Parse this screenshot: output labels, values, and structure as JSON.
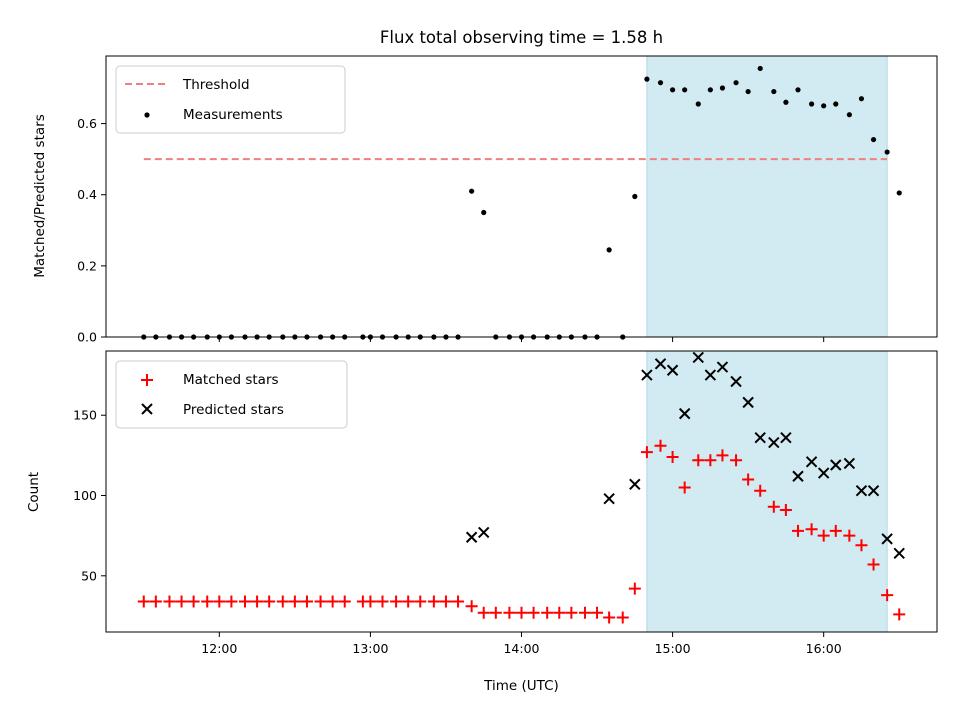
{
  "chart_data": {
    "type": "scatter",
    "title": "Flux total observing time = 1.58 h",
    "shared_x": {
      "label": "Time (UTC)",
      "range_hours": [
        11.25,
        16.75
      ],
      "ticks": [
        {
          "v": 12,
          "t": "12:00"
        },
        {
          "v": 13,
          "t": "13:00"
        },
        {
          "v": 14,
          "t": "14:00"
        },
        {
          "v": 15,
          "t": "15:00"
        },
        {
          "v": 16,
          "t": "16:00"
        }
      ]
    },
    "shaded_span_hours": [
      14.83,
      16.42
    ],
    "colors": {
      "threshold": "#f08080",
      "measurements": "#000000",
      "matched": "#ff0000",
      "predicted": "#000000",
      "span": "#add8e6"
    },
    "top": {
      "ylabel": "Matched/Predicted stars",
      "ylim": [
        0,
        0.79
      ],
      "yticks": [
        {
          "v": 0,
          "t": "0.0"
        },
        {
          "v": 0.2,
          "t": "0.2"
        },
        {
          "v": 0.4,
          "t": "0.4"
        },
        {
          "v": 0.6,
          "t": "0.6"
        }
      ],
      "threshold": {
        "name": "Threshold",
        "y": 0.5,
        "x": [
          11.5,
          16.42
        ]
      },
      "measurements": {
        "name": "Measurements",
        "x": [
          11.5,
          11.58,
          11.67,
          11.75,
          11.83,
          11.92,
          12.0,
          12.08,
          12.17,
          12.25,
          12.33,
          12.42,
          12.5,
          12.58,
          12.67,
          12.75,
          12.83,
          12.95,
          13.0,
          13.08,
          13.17,
          13.25,
          13.33,
          13.42,
          13.5,
          13.58,
          13.67,
          13.75,
          13.83,
          13.92,
          14.0,
          14.08,
          14.17,
          14.25,
          14.33,
          14.42,
          14.5,
          14.58,
          14.67,
          14.75,
          14.83,
          14.92,
          15.0,
          15.08,
          15.17,
          15.25,
          15.33,
          15.42,
          15.5,
          15.58,
          15.67,
          15.75,
          15.83,
          15.92,
          16.0,
          16.08,
          16.17,
          16.25,
          16.33,
          16.42,
          16.5
        ],
        "y": [
          0,
          0,
          0,
          0,
          0,
          0,
          0,
          0,
          0,
          0,
          0,
          0,
          0,
          0,
          0,
          0,
          0,
          0,
          0,
          0,
          0,
          0,
          0,
          0,
          0,
          0,
          0.41,
          0.35,
          0,
          0,
          0,
          0,
          0,
          0,
          0,
          0,
          0,
          0.245,
          0,
          0.395,
          0.725,
          0.715,
          0.695,
          0.695,
          0.655,
          0.695,
          0.7,
          0.715,
          0.69,
          0.755,
          0.69,
          0.66,
          0.695,
          0.655,
          0.65,
          0.655,
          0.625,
          0.67,
          0.555,
          0.52,
          0.405
        ]
      }
    },
    "bottom": {
      "ylabel": "Count",
      "ylim": [
        15,
        190
      ],
      "yticks": [
        {
          "v": 50,
          "t": "50"
        },
        {
          "v": 100,
          "t": "100"
        },
        {
          "v": 150,
          "t": "150"
        }
      ],
      "matched": {
        "name": "Matched stars",
        "x": [
          11.5,
          11.58,
          11.67,
          11.75,
          11.83,
          11.92,
          12.0,
          12.08,
          12.17,
          12.25,
          12.33,
          12.42,
          12.5,
          12.58,
          12.67,
          12.75,
          12.83,
          12.95,
          13.0,
          13.08,
          13.17,
          13.25,
          13.33,
          13.42,
          13.5,
          13.58,
          13.67,
          13.75,
          13.83,
          13.92,
          14.0,
          14.08,
          14.17,
          14.25,
          14.33,
          14.42,
          14.5,
          14.58,
          14.67,
          14.75,
          14.83,
          14.92,
          15.0,
          15.08,
          15.17,
          15.25,
          15.33,
          15.42,
          15.5,
          15.58,
          15.67,
          15.75,
          15.83,
          15.92,
          16.0,
          16.08,
          16.17,
          16.25,
          16.33,
          16.42,
          16.5
        ],
        "y": [
          34,
          34,
          34,
          34,
          34,
          34,
          34,
          34,
          34,
          34,
          34,
          34,
          34,
          34,
          34,
          34,
          34,
          34,
          34,
          34,
          34,
          34,
          34,
          34,
          34,
          34,
          31,
          27,
          27,
          27,
          27,
          27,
          27,
          27,
          27,
          27,
          27,
          24,
          24,
          42,
          127,
          131,
          124,
          105,
          122,
          122,
          125,
          122,
          110,
          103,
          93,
          91,
          78,
          79,
          75,
          78,
          75,
          69,
          57,
          38,
          26
        ]
      },
      "predicted": {
        "name": "Predicted stars",
        "x": [
          13.67,
          13.75,
          14.58,
          14.75,
          14.83,
          14.92,
          15.0,
          15.08,
          15.17,
          15.25,
          15.33,
          15.42,
          15.5,
          15.58,
          15.67,
          15.75,
          15.83,
          15.92,
          16.0,
          16.08,
          16.17,
          16.25,
          16.33,
          16.42,
          16.5
        ],
        "y": [
          74,
          77,
          98,
          107,
          175,
          182,
          178,
          151,
          186,
          175,
          180,
          171,
          158,
          136,
          133,
          136,
          112,
          121,
          114,
          119,
          120,
          103,
          103,
          73,
          64
        ]
      }
    }
  }
}
